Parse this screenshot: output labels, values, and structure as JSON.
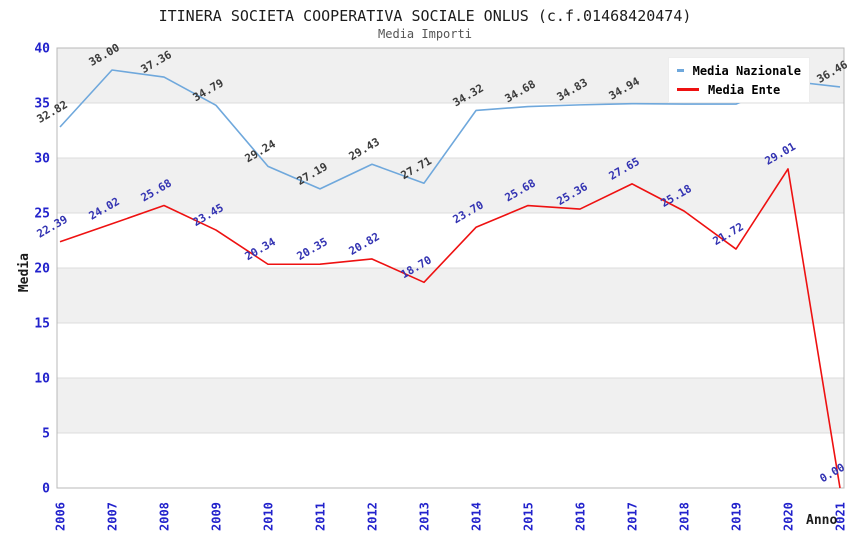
{
  "title": "ITINERA SOCIETA COOPERATIVA SOCIALE ONLUS (c.f.01468420474)",
  "subtitle": "Media Importi",
  "legend": {
    "items": [
      {
        "label": "Media Nazionale",
        "color": "#6FA8DC"
      },
      {
        "label": "Media Ente",
        "color": "#EE1111"
      }
    ]
  },
  "axes": {
    "x_label": "Anno",
    "y_label": "Media",
    "x_ticks": [
      "2006",
      "2007",
      "2008",
      "2009",
      "2010",
      "2011",
      "2012",
      "2013",
      "2014",
      "2015",
      "2016",
      "2017",
      "2018",
      "2019",
      "2020",
      "2021"
    ],
    "y_ticks": [
      0,
      5,
      10,
      15,
      20,
      25,
      30,
      35,
      40
    ],
    "tick_color": "#2222CC",
    "band_color": "#F0F0F0",
    "grid_color": "#DCDCDC",
    "frame_color": "#B8B8B8"
  },
  "chart_data": {
    "type": "line",
    "title": "ITINERA SOCIETA COOPERATIVA SOCIALE ONLUS (c.f.01468420474)",
    "subtitle": "Media Importi",
    "xlabel": "Anno",
    "ylabel": "Media",
    "categories": [
      2006,
      2007,
      2008,
      2009,
      2010,
      2011,
      2012,
      2013,
      2014,
      2015,
      2016,
      2017,
      2018,
      2019,
      2020,
      2021
    ],
    "ylim": [
      0,
      40
    ],
    "grid": true,
    "legend_position": "top-right",
    "series": [
      {
        "name": "Media Nazionale",
        "color": "#6FA8DC",
        "label_color": "#3A3A3A",
        "values": [
          32.82,
          38.0,
          37.36,
          34.79,
          29.24,
          27.19,
          29.43,
          27.71,
          34.32,
          34.68,
          34.83,
          34.94,
          34.9,
          34.9,
          37.0,
          36.46
        ],
        "labels": [
          "32.82",
          "38.00",
          "37.36",
          "34.79",
          "29.24",
          "27.19",
          "29.43",
          "27.71",
          "34.32",
          "34.68",
          "34.83",
          "34.94",
          null,
          null,
          null,
          "36.46"
        ]
      },
      {
        "name": "Media Ente",
        "color": "#EE1111",
        "label_color": "#3333B2",
        "values": [
          22.39,
          24.02,
          25.68,
          23.45,
          20.34,
          20.35,
          20.82,
          18.7,
          23.7,
          25.68,
          25.36,
          27.65,
          25.18,
          21.72,
          29.01,
          0.0
        ],
        "labels": [
          "22.39",
          "24.02",
          "25.68",
          "23.45",
          "20.34",
          "20.35",
          "20.82",
          "18.70",
          "23.70",
          "25.68",
          "25.36",
          "27.65",
          "25.18",
          "21.72",
          "29.01",
          "0.00"
        ]
      }
    ]
  }
}
